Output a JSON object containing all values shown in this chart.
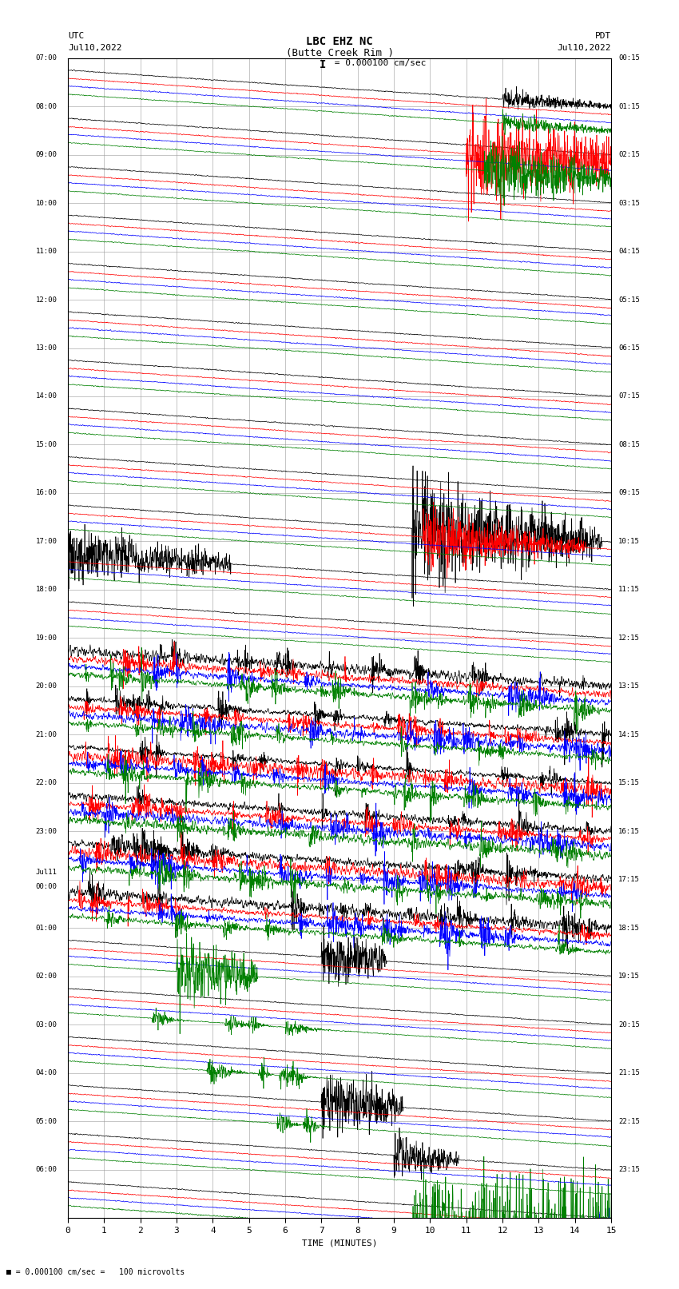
{
  "title_line1": "LBC EHZ NC",
  "title_line2": "(Butte Creek Rim )",
  "scale_label": "I = 0.000100 cm/sec",
  "left_header_1": "UTC",
  "left_header_2": "Jul10,2022",
  "right_header_1": "PDT",
  "right_header_2": "Jul10,2022",
  "bottom_label": "TIME (MINUTES)",
  "bottom_note": "= 0.000100 cm/sec =   100 microvolts",
  "left_times": [
    "07:00",
    "08:00",
    "09:00",
    "10:00",
    "11:00",
    "12:00",
    "13:00",
    "14:00",
    "15:00",
    "16:00",
    "17:00",
    "18:00",
    "19:00",
    "20:00",
    "21:00",
    "22:00",
    "23:00",
    "Jul11\n00:00",
    "01:00",
    "02:00",
    "03:00",
    "04:00",
    "05:00",
    "06:00"
  ],
  "right_times": [
    "00:15",
    "01:15",
    "02:15",
    "03:15",
    "04:15",
    "05:15",
    "06:15",
    "07:15",
    "08:15",
    "09:15",
    "10:15",
    "11:15",
    "12:15",
    "13:15",
    "14:15",
    "15:15",
    "16:15",
    "17:15",
    "18:15",
    "19:15",
    "20:15",
    "21:15",
    "22:15",
    "23:15"
  ],
  "num_rows": 24,
  "minutes_per_row": 15,
  "x_ticks": [
    0,
    1,
    2,
    3,
    4,
    5,
    6,
    7,
    8,
    9,
    10,
    11,
    12,
    13,
    14,
    15
  ],
  "bg_color": "#ffffff",
  "trace_colors": [
    "black",
    "red",
    "blue",
    "green"
  ],
  "grid_color": "#999999",
  "fig_width": 8.5,
  "fig_height": 16.13
}
